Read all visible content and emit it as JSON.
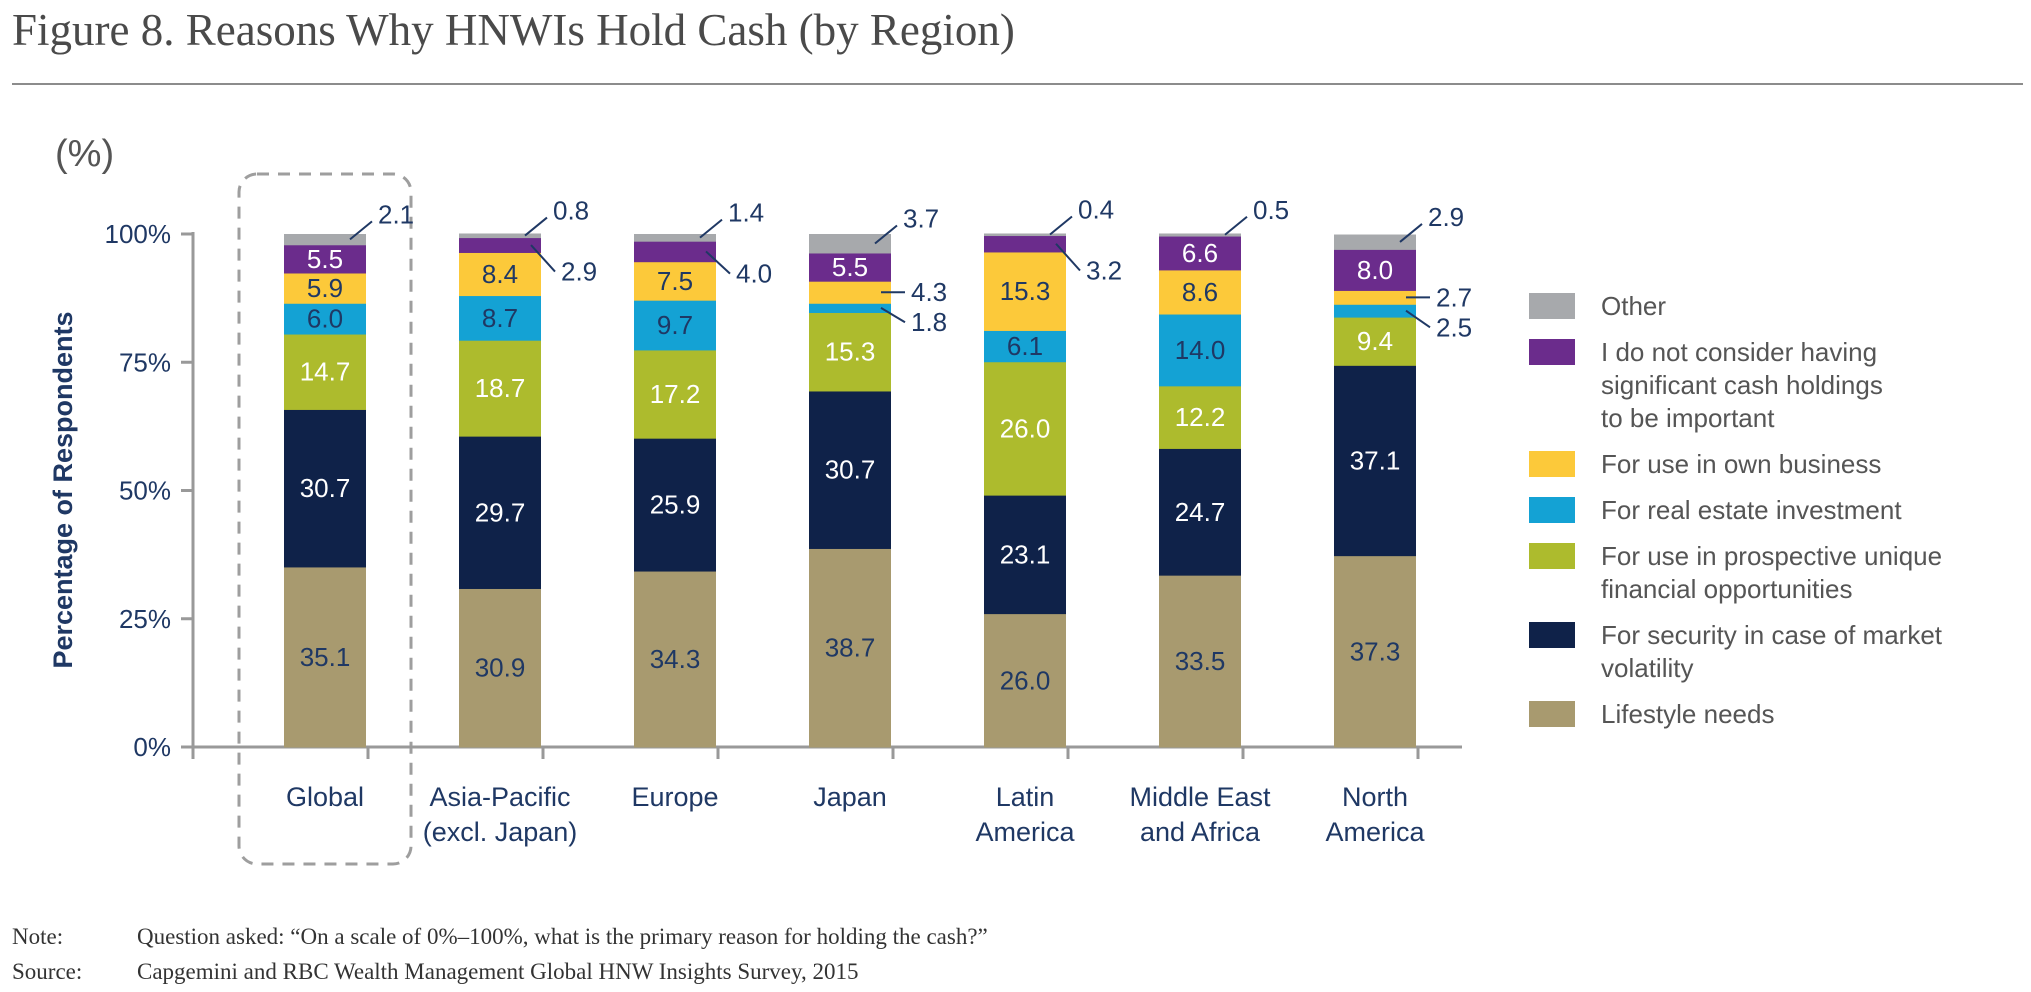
{
  "title": "Figure 8. Reasons Why HNWIs Hold Cash (by Region)",
  "unit_label": "(%)",
  "note_label": "Note:",
  "note_text": "Question asked: “On a scale of 0%–100%, what is the primary reason for holding the cash?”",
  "source_label": "Source:",
  "source_text": "Capgemini and RBC Wealth Management Global HNW Insights Survey, 2015",
  "colors": {
    "lifestyle": "#a89a6f",
    "security": "#0f2249",
    "prospective": "#adbb2d",
    "real_estate": "#14a2d4",
    "own_business": "#fcc93a",
    "not_important": "#6b2c8c",
    "other": "#a7a9ac",
    "axis_text": "#1f3864",
    "axis_line": "#999999",
    "highlight_box": "#9e9e9e"
  },
  "chart_data": {
    "type": "bar",
    "stacked": true,
    "title": "",
    "xlabel": "",
    "ylabel": "Percentage of Respondents",
    "ylim": [
      0,
      100
    ],
    "yticks": [
      "0%",
      "25%",
      "50%",
      "75%",
      "100%"
    ],
    "categories": [
      [
        "Global"
      ],
      [
        "Asia-Pacific",
        "(excl. Japan)"
      ],
      [
        "Europe"
      ],
      [
        "Japan"
      ],
      [
        "Latin",
        "America"
      ],
      [
        "Middle East",
        "and Africa"
      ],
      [
        "North",
        "America"
      ]
    ],
    "highlighted_category": "Global",
    "series": [
      {
        "key": "lifestyle",
        "name": "Lifestyle needs",
        "values": [
          35.1,
          30.9,
          34.3,
          38.7,
          26.0,
          33.5,
          37.3
        ]
      },
      {
        "key": "security",
        "name": "For security in case of market volatility",
        "values": [
          30.7,
          29.7,
          25.9,
          30.7,
          23.1,
          24.7,
          37.1
        ]
      },
      {
        "key": "prospective",
        "name": "For use in prospective unique financial opportunities",
        "values": [
          14.7,
          18.7,
          17.2,
          15.3,
          26.0,
          12.2,
          9.4
        ]
      },
      {
        "key": "real_estate",
        "name": "For real estate investment",
        "values": [
          6.0,
          8.7,
          9.7,
          1.8,
          6.1,
          14.0,
          2.5
        ]
      },
      {
        "key": "own_business",
        "name": "For use in own business",
        "values": [
          5.9,
          8.4,
          7.5,
          4.3,
          15.3,
          8.6,
          2.7
        ]
      },
      {
        "key": "not_important",
        "name": "I do not consider having significant cash holdings to be important",
        "values": [
          5.5,
          2.9,
          4.0,
          5.5,
          3.2,
          6.6,
          8.0
        ]
      },
      {
        "key": "other",
        "name": "Other",
        "values": [
          2.1,
          0.8,
          1.4,
          3.7,
          0.4,
          0.5,
          2.9
        ]
      }
    ],
    "legend": {
      "placement": "right",
      "order": [
        "other",
        "not_important",
        "own_business",
        "real_estate",
        "prospective",
        "security",
        "lifestyle"
      ],
      "lines": {
        "other": [
          "Other"
        ],
        "not_important": [
          "I do not consider having",
          "significant cash holdings",
          "to be important"
        ],
        "own_business": [
          "For use in own business"
        ],
        "real_estate": [
          "For real estate investment"
        ],
        "prospective": [
          "For use in prospective unique",
          "financial opportunities"
        ],
        "security": [
          "For security in case of market",
          "volatility"
        ],
        "lifestyle": [
          "Lifestyle needs"
        ]
      }
    }
  }
}
